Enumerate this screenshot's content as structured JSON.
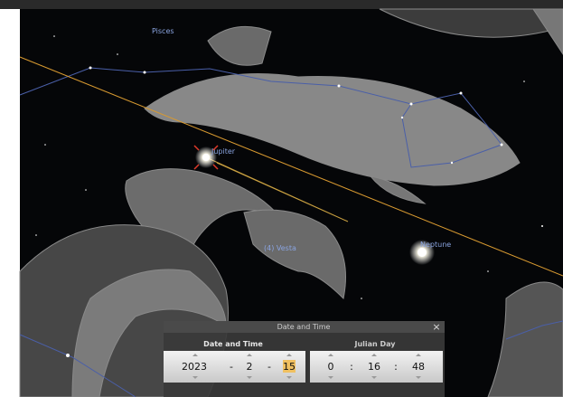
{
  "sky_labels": {
    "pisces": "Pisces",
    "jupiter": "Jupiter",
    "vesta": "(4) Vesta",
    "neptune": "Neptune"
  },
  "dialog": {
    "title": "Date and Time",
    "close": "×",
    "date_pane": {
      "header": "Date and Time",
      "year": "2023",
      "sep1": "-",
      "month": "2",
      "sep2": "-",
      "day": "15"
    },
    "time_pane": {
      "header": "Julian Day",
      "hour": "0",
      "sep1": ":",
      "minute": "16",
      "sep2": ":",
      "second": "48"
    }
  }
}
